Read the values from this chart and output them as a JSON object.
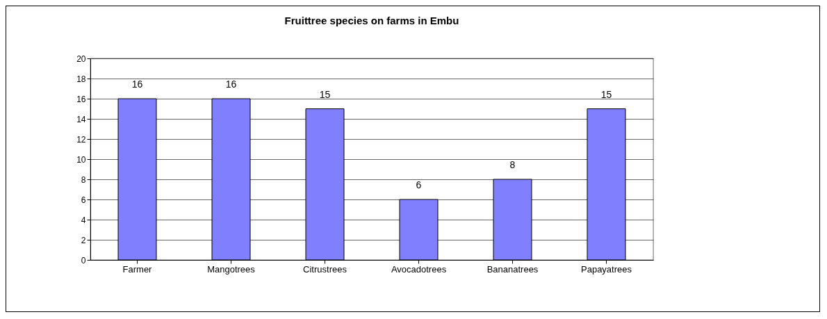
{
  "chart_data": {
    "type": "bar",
    "title": "Fruittree species on farms in Embu",
    "categories": [
      "Farmer",
      "Mangotrees",
      "Citrustrees",
      "Avocadotrees",
      "Bananatrees",
      "Papayatrees"
    ],
    "values": [
      16,
      16,
      15,
      6,
      8,
      15
    ],
    "color": "#8080ff",
    "ylim": [
      0,
      20
    ],
    "yticks": [
      0,
      2,
      4,
      6,
      8,
      10,
      12,
      14,
      16,
      18,
      20
    ],
    "grid": "y",
    "data_labels": true
  }
}
